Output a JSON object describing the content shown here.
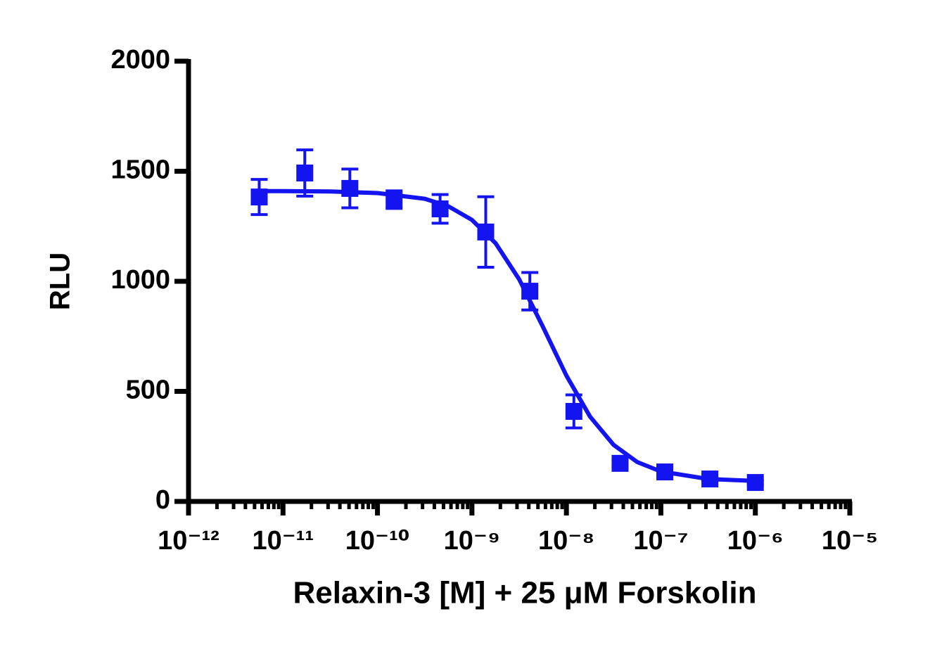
{
  "chart_data": {
    "type": "scatter",
    "x_label": "Relaxin-3 [M] + 25  μM Forskolin",
    "y_label": "RLU",
    "log_x": true,
    "color": "#1414f0",
    "xlim": [
      1e-12,
      1e-05
    ],
    "ylim": [
      0,
      2000
    ],
    "xticks": [
      {
        "value": 1e-12,
        "label": "10⁻¹²"
      },
      {
        "value": 1e-11,
        "label": "10⁻¹¹"
      },
      {
        "value": 1e-10,
        "label": "10⁻¹⁰"
      },
      {
        "value": 1e-09,
        "label": "10⁻⁹"
      },
      {
        "value": 1e-08,
        "label": "10⁻⁸"
      },
      {
        "value": 1e-07,
        "label": "10⁻⁷"
      },
      {
        "value": 1e-06,
        "label": "10⁻⁶"
      },
      {
        "value": 1e-05,
        "label": "10⁻⁵"
      }
    ],
    "yticks": [
      0,
      500,
      1000,
      1500,
      2000
    ],
    "points": {
      "x": [
        5.6e-12,
        1.7e-11,
        5.1e-11,
        1.5e-10,
        4.6e-10,
        1.4e-09,
        4.1e-09,
        1.2e-08,
        3.7e-08,
        1.1e-07,
        3.3e-07,
        1e-06
      ],
      "values": [
        1383,
        1492,
        1422,
        1371,
        1329,
        1224,
        955,
        409,
        173,
        134,
        102,
        86
      ],
      "errors": [
        80,
        105,
        88,
        40,
        65,
        160,
        85,
        75,
        15,
        15,
        10,
        10
      ]
    },
    "curve": {
      "x": [
        5.62e-12,
        1e-11,
        3.16e-11,
        1e-10,
        3.16e-10,
        5.62e-10,
        1e-09,
        1.78e-09,
        3.16e-09,
        5.62e-09,
        1e-08,
        1.78e-08,
        3.16e-08,
        5.62e-08,
        1e-07,
        3.16e-07,
        1e-06
      ],
      "values": [
        1410,
        1410,
        1408,
        1401,
        1375,
        1341,
        1279,
        1173,
        1009,
        795,
        572,
        385,
        257,
        179,
        136,
        102,
        93
      ]
    }
  }
}
